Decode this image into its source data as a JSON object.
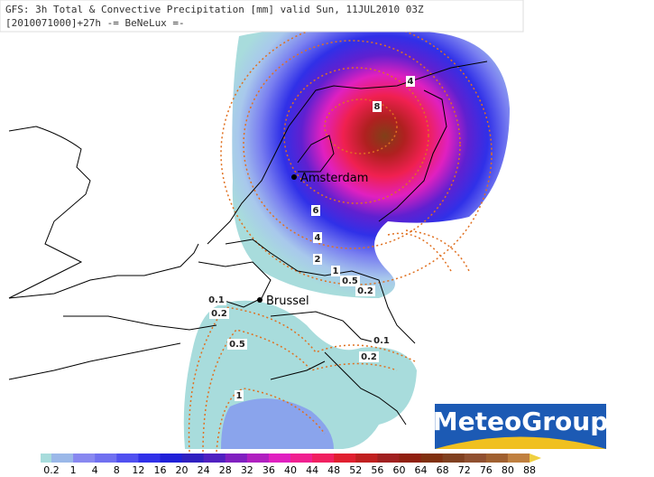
{
  "header": {
    "line1": "GFS: 3h Total & Convective Precipitation [mm] valid Sun, 11JUL2010 03Z",
    "line2": "[2010071000]+27h -= BeNeLux =-"
  },
  "cities": [
    "Amsterdam",
    "Brussel"
  ],
  "contour_labels": [
    "4",
    "8",
    "6",
    "4",
    "2",
    "1",
    "0.5",
    "0.2",
    "0.1",
    "0.2",
    "0.5",
    "1",
    "0.1",
    "0.2"
  ],
  "legend": {
    "labels": [
      "0.2",
      "1",
      "4",
      "8",
      "12",
      "16",
      "20",
      "24",
      "28",
      "32",
      "36",
      "40",
      "44",
      "48",
      "52",
      "56",
      "60",
      "64",
      "68",
      "72",
      "76",
      "80",
      "88"
    ]
  },
  "logo": "MeteoGroup"
}
